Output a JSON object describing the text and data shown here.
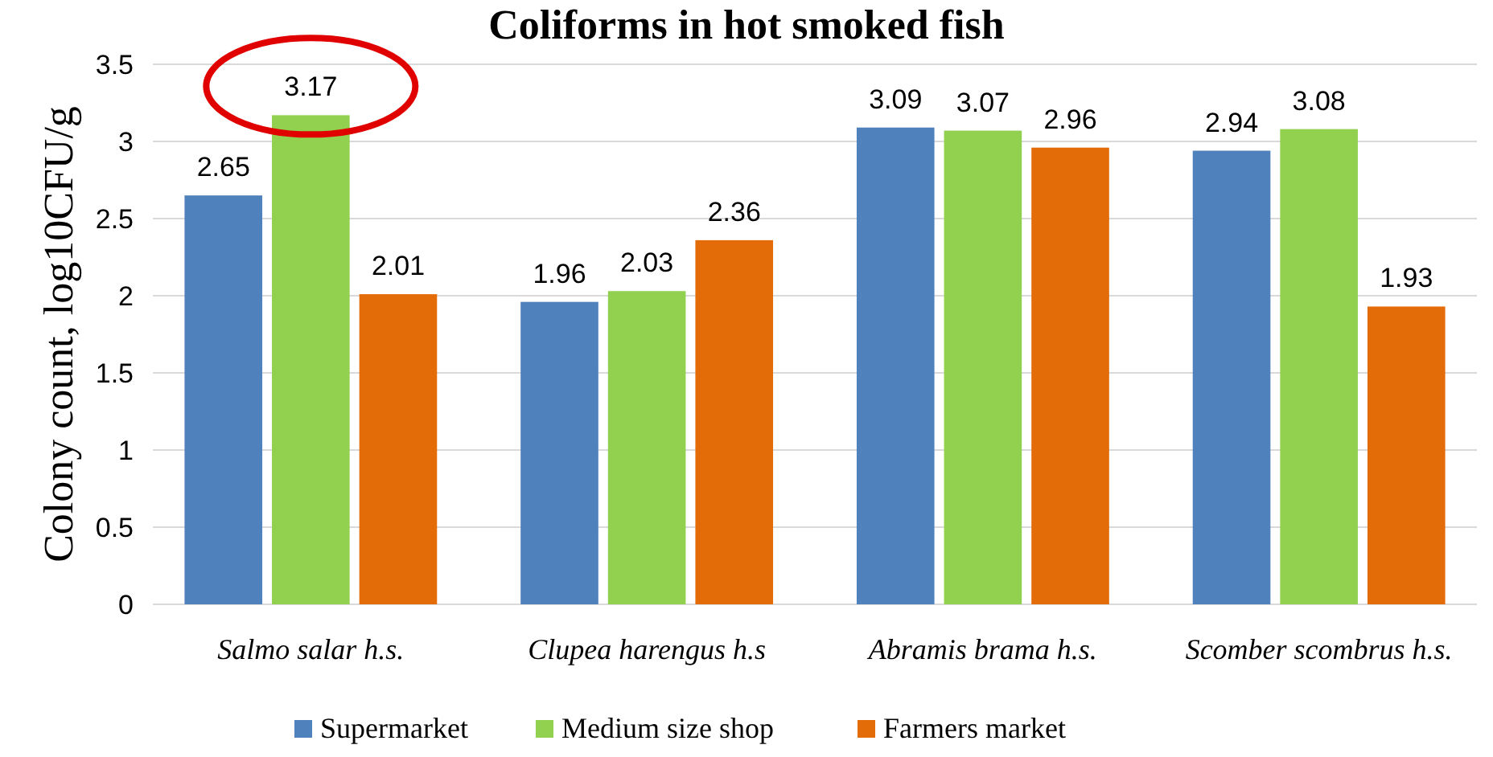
{
  "chart_data": {
    "type": "bar",
    "title": "Coliforms in hot smoked fish",
    "ylabel": "Colony count, log10CFU/g",
    "categories": [
      "Salmo salar h.s.",
      "Clupea harengus h.s",
      "Abramis brama h.s.",
      "Scomber scombrus h.s."
    ],
    "series": [
      {
        "name": "Supermarket",
        "color": "#4f81bd",
        "values": [
          2.65,
          1.96,
          3.09,
          2.94
        ]
      },
      {
        "name": "Medium size shop",
        "color": "#92d050",
        "values": [
          3.17,
          2.03,
          3.07,
          3.08
        ]
      },
      {
        "name": "Farmers market",
        "color": "#e36c09",
        "values": [
          2.01,
          2.36,
          2.96,
          1.93
        ]
      }
    ],
    "ylim": [
      0,
      3.5
    ],
    "yticks": [
      0,
      0.5,
      1,
      1.5,
      2,
      2.5,
      3,
      3.5
    ],
    "grid": "y",
    "legend": "bottom",
    "data_labels": true
  }
}
